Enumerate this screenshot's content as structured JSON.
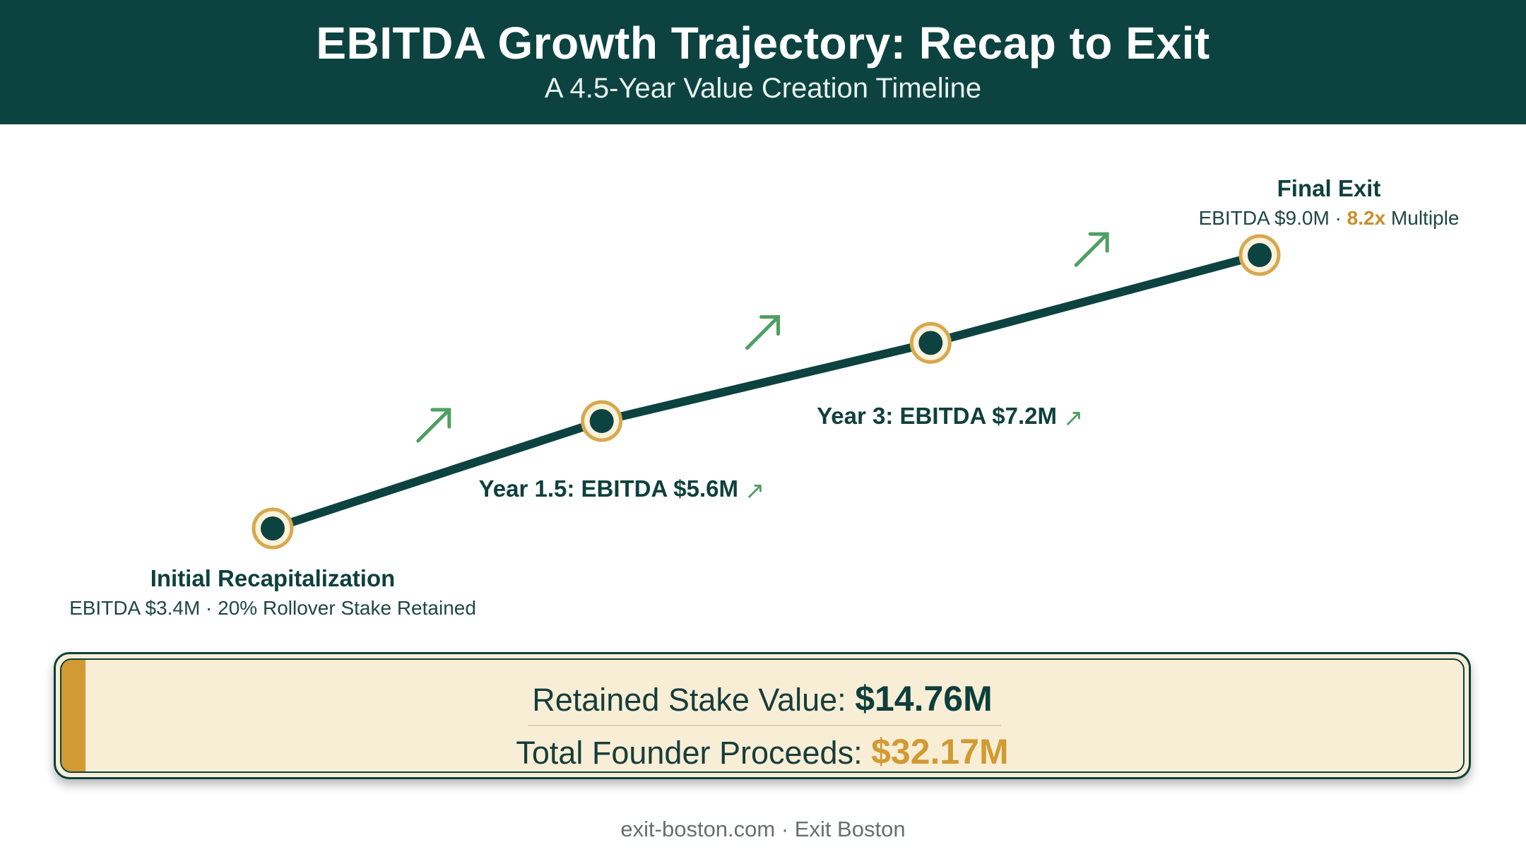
{
  "header": {
    "title": "EBITDA Growth Trajectory: Recap to Exit",
    "subtitle": "A 4.5-Year Value Creation Timeline"
  },
  "chart_data": {
    "type": "line",
    "x": [
      0,
      1.5,
      3,
      4.5
    ],
    "y": [
      3.4,
      5.6,
      7.2,
      9.0
    ],
    "y_unit": "EBITDA ($M)",
    "milestones": [
      {
        "title": "Initial Recapitalization",
        "detail": "EBITDA $3.4M · 20% Rollover Stake Retained"
      },
      {
        "title": "Year 1.5: EBITDA $5.6M",
        "arrow": "↗"
      },
      {
        "title": "Year 3: EBITDA $7.2M",
        "arrow": "↗"
      },
      {
        "title": "Final Exit",
        "detail_prefix": "EBITDA $9.0M · ",
        "detail_highlight": "8.2x",
        "detail_suffix": " Multiple"
      }
    ],
    "colors": {
      "line": "#0c4340",
      "point_ring": "#d7a84e",
      "growth_arrow": "#4f9f63",
      "highlight": "#c98f2c"
    }
  },
  "summary": {
    "retained_label": "Retained Stake Value: ",
    "retained_value": "$14.76M",
    "proceeds_label": "Total Founder Proceeds: ",
    "proceeds_value": "$32.17M"
  },
  "footer": {
    "text": "exit-boston.com · Exit Boston"
  }
}
